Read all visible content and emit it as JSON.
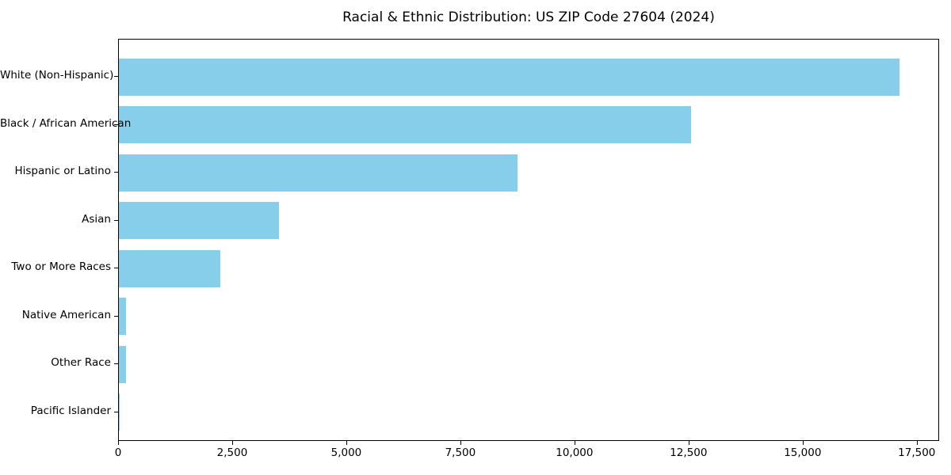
{
  "chart_data": {
    "type": "bar",
    "orientation": "horizontal",
    "title": "Racial & Ethnic Distribution: US ZIP Code 27604 (2024)",
    "categories": [
      "White (Non-Hispanic)",
      "Black / African American",
      "Hispanic or Latino",
      "Asian",
      "Two or More Races",
      "Native American",
      "Other Race",
      "Pacific Islander"
    ],
    "values": [
      17140,
      12570,
      8750,
      3520,
      2220,
      150,
      160,
      15
    ],
    "xlabel": "",
    "ylabel": "",
    "xlim": [
      0,
      17990
    ],
    "x_ticks": [
      0,
      2500,
      5000,
      7500,
      10000,
      12500,
      15000,
      17500
    ],
    "x_tick_labels": [
      "0",
      "2,500",
      "5,000",
      "7,500",
      "10,000",
      "12,500",
      "15,000",
      "17,500"
    ],
    "bar_color": "#87CEEB",
    "axis_color": "#000000",
    "grid": false,
    "legend": "none",
    "plot_border": "full-box"
  }
}
